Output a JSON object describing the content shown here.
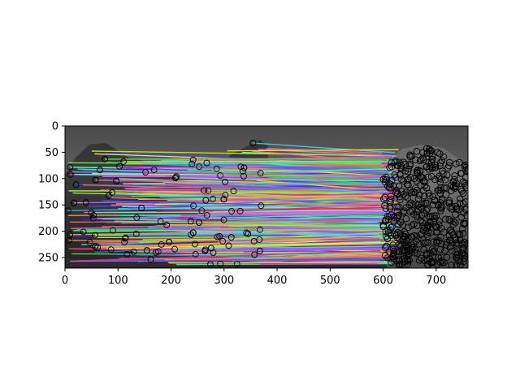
{
  "chart_data": {
    "type": "scatter",
    "title": "",
    "xlabel": "",
    "ylabel": "",
    "description_kind": "image with plotted feature points and match lines",
    "xlim": [
      0,
      760
    ],
    "ylim": [
      270,
      0
    ],
    "y_axis_inverted": true,
    "x_ticks": [
      0,
      100,
      200,
      300,
      400,
      500,
      600,
      700
    ],
    "y_ticks": [
      0,
      50,
      100,
      150,
      200,
      250
    ],
    "x_tick_labels": [
      "0",
      "100",
      "200",
      "300",
      "400",
      "500",
      "600",
      "700"
    ],
    "y_tick_labels": [
      "0",
      "50",
      "100",
      "150",
      "200",
      "250"
    ],
    "grid": false,
    "left_image_bounds": {
      "x": [
        0,
        380
      ],
      "y": [
        0,
        270
      ]
    },
    "right_image_bounds": {
      "x": [
        380,
        760
      ],
      "y": [
        0,
        270
      ]
    },
    "left_keypoint_cluster": {
      "x_range": [
        5,
        380
      ],
      "y_range": [
        25,
        265
      ]
    },
    "right_keypoint_cluster": {
      "x_range": [
        600,
        760
      ],
      "y_range": [
        40,
        265
      ]
    },
    "match_line_count_approx": 350,
    "keypoint_marker": "open circle",
    "keypoint_color": "#000000"
  }
}
